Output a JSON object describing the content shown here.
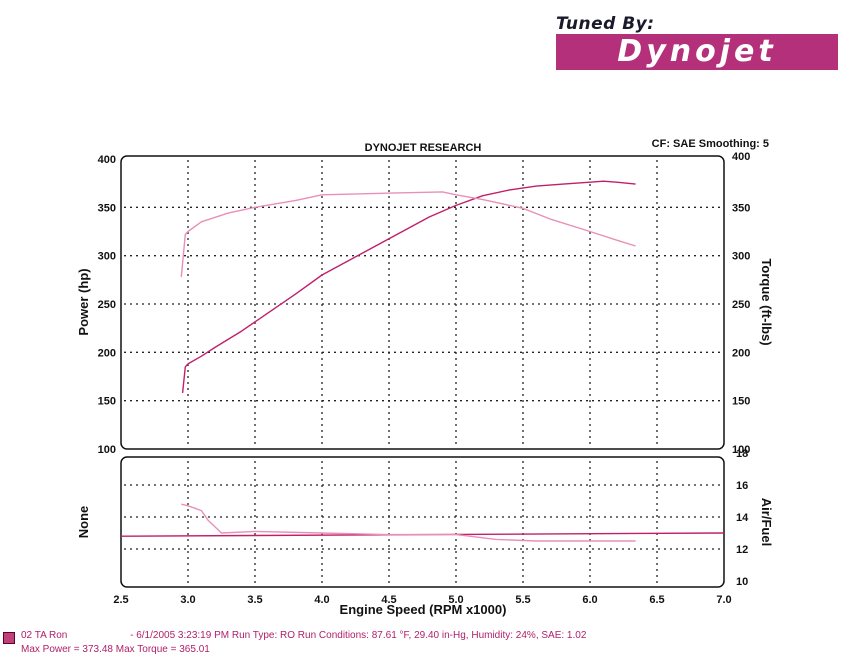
{
  "logo": {
    "tuned_by": "Tuned By:",
    "brand": "Dynojet"
  },
  "chart_data": [
    {
      "type": "line",
      "title": "DYNOJET RESEARCH",
      "note": "CF: SAE  Smoothing: 5",
      "xlabel": "Engine Speed (RPM x1000)",
      "ylabel": "Power (hp)",
      "ylabel_right": "Torque (ft-lbs)",
      "xlim": [
        2.5,
        7.0
      ],
      "ylim": [
        100,
        400
      ],
      "ylim_right": [
        100,
        400
      ],
      "grid": true,
      "yticks": [
        "400",
        "350",
        "300",
        "250",
        "200",
        "150",
        "100"
      ],
      "yticks_right": [
        "400",
        "350",
        "300",
        "250",
        "200",
        "150",
        "100"
      ],
      "series": [
        {
          "color": "#c0206a",
          "x": [
            2.96,
            2.98,
            3.0,
            3.1,
            3.2,
            3.4,
            3.6,
            3.8,
            4.0,
            4.2,
            4.4,
            4.6,
            4.8,
            5.0,
            5.2,
            5.4,
            5.6,
            5.8,
            6.0,
            6.1,
            6.2,
            6.34
          ],
          "y": [
            158,
            185,
            188,
            196,
            205,
            222,
            241,
            260,
            280,
            295,
            310,
            325,
            340,
            352,
            362,
            368,
            372,
            374,
            376,
            377,
            376,
            374
          ]
        },
        {
          "color": "#e890b8",
          "x": [
            2.95,
            2.98,
            3.0,
            3.1,
            3.3,
            3.5,
            3.8,
            4.0,
            4.3,
            4.6,
            4.9,
            5.0,
            5.2,
            5.5,
            5.7,
            6.0,
            6.2,
            6.34
          ],
          "y": [
            278,
            322,
            325,
            335,
            344,
            350,
            357,
            363,
            364,
            365,
            366,
            363,
            358,
            349,
            338,
            325,
            316,
            310
          ]
        }
      ]
    },
    {
      "type": "line",
      "xlabel": "Engine Speed (RPM x1000)",
      "ylabel": "None",
      "ylabel_right": "Air/Fuel",
      "xlim": [
        2.5,
        7.0
      ],
      "ylim_right": [
        10,
        18
      ],
      "grid": true,
      "xticks": [
        "2.5",
        "3.0",
        "3.5",
        "4.0",
        "4.5",
        "5.0",
        "5.5",
        "6.0",
        "6.5",
        "7.0"
      ],
      "yticks_right": [
        "18",
        "16",
        "14",
        "12",
        "10"
      ],
      "series": [
        {
          "color": "#c0206a",
          "x": [
            2.5,
            7.0
          ],
          "y": [
            12.8,
            13.0
          ]
        },
        {
          "color": "#e890b8",
          "x": [
            2.95,
            3.0,
            3.1,
            3.15,
            3.25,
            3.5,
            4.0,
            4.5,
            5.0,
            5.3,
            5.6,
            6.0,
            6.34
          ],
          "y": [
            14.8,
            14.7,
            14.4,
            13.8,
            13.0,
            13.1,
            13.0,
            12.9,
            12.9,
            12.6,
            12.5,
            12.5,
            12.5
          ]
        }
      ]
    }
  ],
  "footer": {
    "run_name": "02 TA Ron",
    "run_info": "- 6/1/2005 3:23:19 PM  Run Type: RO  Run Conditions: 87.61 °F, 29.40 in-Hg,  Humidity:  24%, SAE: 1.02",
    "max_values": "Max Power = 373.48  Max Torque = 365.01"
  }
}
